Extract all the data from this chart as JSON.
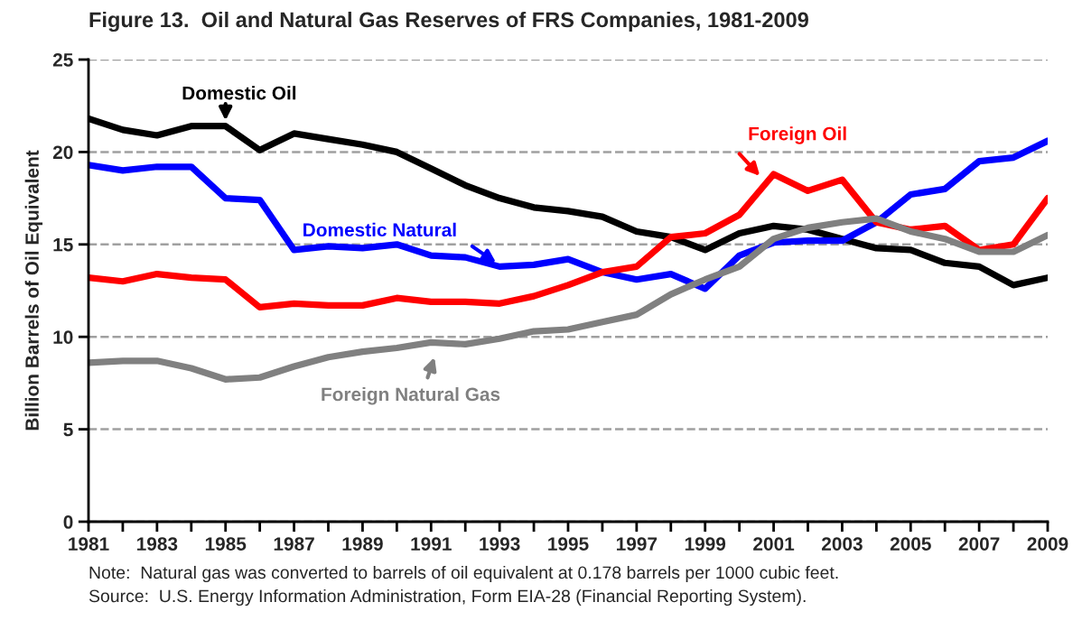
{
  "chart_data": {
    "type": "line",
    "title": "Figure 13.  Oil and Natural Gas Reserves of FRS Companies, 1981-2009",
    "ylabel": "Billion Barrels of Oil Equivalent",
    "x": [
      1981,
      1982,
      1983,
      1984,
      1985,
      1986,
      1987,
      1988,
      1989,
      1990,
      1991,
      1992,
      1993,
      1994,
      1995,
      1996,
      1997,
      1998,
      1999,
      2000,
      2001,
      2002,
      2003,
      2004,
      2005,
      2006,
      2007,
      2008,
      2009
    ],
    "series": [
      {
        "name": "Domestic Oil",
        "color": "#000000",
        "values": [
          21.8,
          21.2,
          20.9,
          21.4,
          21.4,
          20.1,
          21.0,
          20.7,
          20.4,
          20.0,
          19.1,
          18.2,
          17.5,
          17.0,
          16.8,
          16.5,
          15.7,
          15.4,
          14.7,
          15.6,
          16.0,
          15.8,
          15.3,
          14.8,
          14.7,
          14.0,
          13.8,
          12.8,
          13.2
        ]
      },
      {
        "name": "Domestic Natural",
        "color": "#0000ff",
        "values": [
          19.3,
          19.0,
          19.2,
          19.2,
          17.5,
          17.4,
          14.7,
          14.9,
          14.8,
          15.0,
          14.4,
          14.3,
          13.8,
          13.9,
          14.2,
          13.5,
          13.1,
          13.4,
          12.6,
          14.4,
          15.1,
          15.2,
          15.2,
          16.2,
          17.7,
          18.0,
          19.5,
          19.7,
          20.6
        ]
      },
      {
        "name": "Foreign Oil",
        "color": "#ff0000",
        "values": [
          13.2,
          13.0,
          13.4,
          13.2,
          13.1,
          11.6,
          11.8,
          11.7,
          11.7,
          12.1,
          11.9,
          11.9,
          11.8,
          12.2,
          12.8,
          13.5,
          13.8,
          15.4,
          15.6,
          16.6,
          18.8,
          17.9,
          18.5,
          16.2,
          15.8,
          16.0,
          14.7,
          15.0,
          17.5
        ]
      },
      {
        "name": "Foreign Natural Gas",
        "color": "#808080",
        "values": [
          8.6,
          8.7,
          8.7,
          8.3,
          7.7,
          7.8,
          8.4,
          8.9,
          9.2,
          9.4,
          9.7,
          9.6,
          9.9,
          10.3,
          10.4,
          10.8,
          11.2,
          12.3,
          13.1,
          13.8,
          15.3,
          15.9,
          16.2,
          16.4,
          15.7,
          15.3,
          14.6,
          14.6,
          15.5
        ]
      }
    ],
    "xlim": [
      1981,
      2009
    ],
    "xticks": [
      1981,
      {
        "value": 1982,
        "label": null
      },
      1983,
      {
        "value": 1984,
        "label": null
      },
      1985,
      {
        "value": 1986,
        "label": null
      },
      1987,
      {
        "value": 1988,
        "label": null
      },
      1989,
      {
        "value": 1990,
        "label": null
      },
      1991,
      {
        "value": 1992,
        "label": null
      },
      1993,
      {
        "value": 1994,
        "label": null
      },
      1995,
      {
        "value": 1996,
        "label": null
      },
      1997,
      {
        "value": 1998,
        "label": null
      },
      1999,
      {
        "value": 2000,
        "label": null
      },
      2001,
      {
        "value": 2002,
        "label": null
      },
      2003,
      {
        "value": 2004,
        "label": null
      },
      2005,
      {
        "value": 2006,
        "label": null
      },
      2007,
      {
        "value": 2008,
        "label": null
      },
      2009
    ],
    "ylim": [
      0,
      25
    ],
    "yticks": [
      0,
      5,
      10,
      15,
      20,
      25
    ],
    "grid": "y",
    "line_style": "solid",
    "marker": "none",
    "annotations": [
      "Note:  Natural gas was converted to barrels of oil equivalent at 0.178 barrels per 1000 cubic feet.",
      "Source:  U.S. Energy Information Administration, Form EIA-28 (Financial Reporting System)."
    ]
  }
}
